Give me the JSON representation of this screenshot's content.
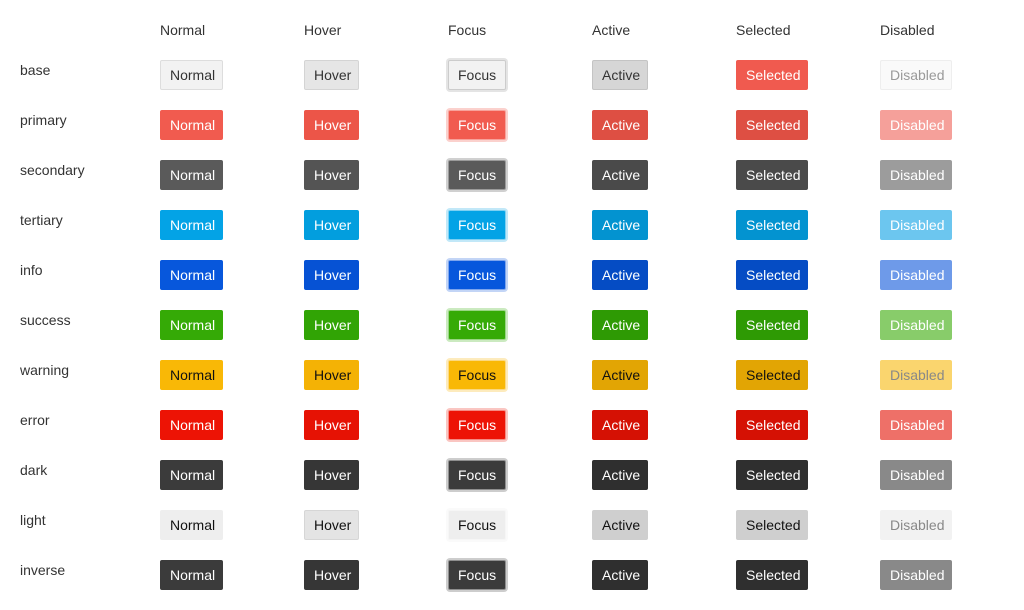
{
  "columns": [
    "Normal",
    "Hover",
    "Focus",
    "Active",
    "Selected",
    "Disabled"
  ],
  "rows": [
    {
      "name": "base",
      "styles": [
        {
          "bg": "#f2f2f2",
          "fg": "#333333",
          "border": "#dddddd"
        },
        {
          "bg": "#e6e6e6",
          "fg": "#333333",
          "border": "#d4d4d4"
        },
        {
          "bg": "#f2f2f2",
          "fg": "#333333",
          "border": "#cccccc",
          "ring": "#e4e4e4"
        },
        {
          "bg": "#d6d6d6",
          "fg": "#333333",
          "border": "#c4c4c4"
        },
        {
          "bg": "#f05a4f",
          "fg": "#ffffff",
          "border": "#f05a4f"
        },
        {
          "bg": "#fafafa",
          "fg": "#999999",
          "border": "#eeeeee"
        }
      ]
    },
    {
      "name": "primary",
      "styles": [
        {
          "bg": "#f15b4f",
          "fg": "#ffffff",
          "border": "#f15b4f"
        },
        {
          "bg": "#ec5548",
          "fg": "#ffffff",
          "border": "#ec5548"
        },
        {
          "bg": "#f15b4f",
          "fg": "#ffffff",
          "border": "#f7a29b",
          "ring": "#fbd1cd"
        },
        {
          "bg": "#de4f43",
          "fg": "#ffffff",
          "border": "#de4f43"
        },
        {
          "bg": "#de4f43",
          "fg": "#ffffff",
          "border": "#de4f43"
        },
        {
          "bg": "#f5a09a",
          "fg": "#ffffff",
          "border": "#f5a09a"
        }
      ]
    },
    {
      "name": "secondary",
      "styles": [
        {
          "bg": "#5a5a5a",
          "fg": "#ffffff",
          "border": "#5a5a5a"
        },
        {
          "bg": "#545454",
          "fg": "#ffffff",
          "border": "#545454"
        },
        {
          "bg": "#5a5a5a",
          "fg": "#ffffff",
          "border": "#9a9a9a",
          "ring": "#d0d0d0"
        },
        {
          "bg": "#4a4a4a",
          "fg": "#ffffff",
          "border": "#4a4a4a"
        },
        {
          "bg": "#4a4a4a",
          "fg": "#ffffff",
          "border": "#4a4a4a"
        },
        {
          "bg": "#9c9c9c",
          "fg": "#ffffff",
          "border": "#9c9c9c"
        }
      ]
    },
    {
      "name": "tertiary",
      "styles": [
        {
          "bg": "#03a3e6",
          "fg": "#ffffff",
          "border": "#03a3e6"
        },
        {
          "bg": "#029ede",
          "fg": "#ffffff",
          "border": "#029ede"
        },
        {
          "bg": "#03a3e6",
          "fg": "#ffffff",
          "border": "#7dd0f2",
          "ring": "#c2e8f8"
        },
        {
          "bg": "#0393d0",
          "fg": "#ffffff",
          "border": "#0393d0"
        },
        {
          "bg": "#0393d0",
          "fg": "#ffffff",
          "border": "#0393d0"
        },
        {
          "bg": "#6cc6ef",
          "fg": "#ffffff",
          "border": "#6cc6ef"
        }
      ]
    },
    {
      "name": "info",
      "styles": [
        {
          "bg": "#0757dc",
          "fg": "#ffffff",
          "border": "#0757dc"
        },
        {
          "bg": "#0652d4",
          "fg": "#ffffff",
          "border": "#0652d4"
        },
        {
          "bg": "#0757dc",
          "fg": "#ffffff",
          "border": "#7ea5ec",
          "ring": "#c3d5f6"
        },
        {
          "bg": "#054cc4",
          "fg": "#ffffff",
          "border": "#054cc4"
        },
        {
          "bg": "#054cc4",
          "fg": "#ffffff",
          "border": "#054cc4"
        },
        {
          "bg": "#6e9ae9",
          "fg": "#ffffff",
          "border": "#6e9ae9"
        }
      ]
    },
    {
      "name": "success",
      "styles": [
        {
          "bg": "#35aa06",
          "fg": "#ffffff",
          "border": "#35aa06"
        },
        {
          "bg": "#31a405",
          "fg": "#ffffff",
          "border": "#31a405"
        },
        {
          "bg": "#35aa06",
          "fg": "#ffffff",
          "border": "#98d583",
          "ring": "#cbeac0"
        },
        {
          "bg": "#2e9a04",
          "fg": "#ffffff",
          "border": "#2e9a04"
        },
        {
          "bg": "#2e9a04",
          "fg": "#ffffff",
          "border": "#2e9a04"
        },
        {
          "bg": "#88cc6a",
          "fg": "#ffffff",
          "border": "#88cc6a"
        }
      ]
    },
    {
      "name": "warning",
      "styles": [
        {
          "bg": "#f9b806",
          "fg": "#111111",
          "border": "#f9b806"
        },
        {
          "bg": "#f4b205",
          "fg": "#111111",
          "border": "#f4b205"
        },
        {
          "bg": "#f9b806",
          "fg": "#111111",
          "border": "#fbd880",
          "ring": "#fdebbd"
        },
        {
          "bg": "#e2a504",
          "fg": "#111111",
          "border": "#e2a504"
        },
        {
          "bg": "#e2a504",
          "fg": "#111111",
          "border": "#e2a504"
        },
        {
          "bg": "#fad56e",
          "fg": "#888888",
          "border": "#fad56e"
        }
      ]
    },
    {
      "name": "error",
      "styles": [
        {
          "bg": "#ed1305",
          "fg": "#ffffff",
          "border": "#ed1305"
        },
        {
          "bg": "#e61204",
          "fg": "#ffffff",
          "border": "#e61204"
        },
        {
          "bg": "#ed1305",
          "fg": "#ffffff",
          "border": "#f58a82",
          "ring": "#fac6c2"
        },
        {
          "bg": "#d51104",
          "fg": "#ffffff",
          "border": "#d51104"
        },
        {
          "bg": "#d51104",
          "fg": "#ffffff",
          "border": "#d51104"
        },
        {
          "bg": "#ee7068",
          "fg": "#ffffff",
          "border": "#ee7068"
        }
      ]
    },
    {
      "name": "dark",
      "styles": [
        {
          "bg": "#3b3b3b",
          "fg": "#ffffff",
          "border": "#3b3b3b"
        },
        {
          "bg": "#363636",
          "fg": "#ffffff",
          "border": "#363636"
        },
        {
          "bg": "#3b3b3b",
          "fg": "#ffffff",
          "border": "#8e8e8e",
          "ring": "#cdcdcd"
        },
        {
          "bg": "#2f2f2f",
          "fg": "#ffffff",
          "border": "#2f2f2f"
        },
        {
          "bg": "#2f2f2f",
          "fg": "#ffffff",
          "border": "#2f2f2f"
        },
        {
          "bg": "#898989",
          "fg": "#ffffff",
          "border": "#898989"
        }
      ]
    },
    {
      "name": "light",
      "styles": [
        {
          "bg": "#eeeeee",
          "fg": "#111111",
          "border": "#eeeeee"
        },
        {
          "bg": "#e4e4e4",
          "fg": "#111111",
          "border": "#d6d6d6"
        },
        {
          "bg": "#eeeeee",
          "fg": "#111111",
          "border": "#f6f6f6",
          "ring": "#fafafa"
        },
        {
          "bg": "#cfcfcf",
          "fg": "#111111",
          "border": "#cfcfcf"
        },
        {
          "bg": "#cfcfcf",
          "fg": "#111111",
          "border": "#cfcfcf"
        },
        {
          "bg": "#f2f2f2",
          "fg": "#888888",
          "border": "#f2f2f2"
        }
      ]
    },
    {
      "name": "inverse",
      "styles": [
        {
          "bg": "#3b3b3b",
          "fg": "#ffffff",
          "border": "#3b3b3b"
        },
        {
          "bg": "#363636",
          "fg": "#ffffff",
          "border": "#363636"
        },
        {
          "bg": "#3b3b3b",
          "fg": "#ffffff",
          "border": "#8e8e8e",
          "ring": "#cdcdcd"
        },
        {
          "bg": "#2f2f2f",
          "fg": "#ffffff",
          "border": "#2f2f2f"
        },
        {
          "bg": "#2f2f2f",
          "fg": "#ffffff",
          "border": "#2f2f2f"
        },
        {
          "bg": "#898989",
          "fg": "#ffffff",
          "border": "#898989"
        }
      ]
    }
  ]
}
